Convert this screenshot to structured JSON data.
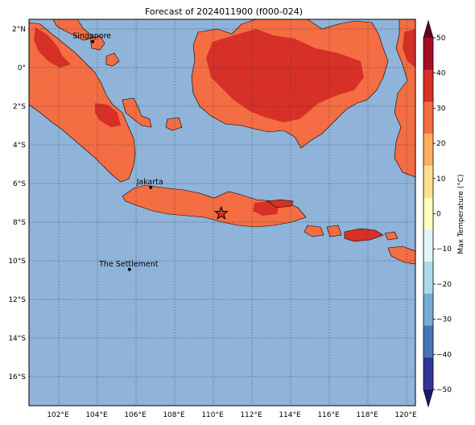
{
  "title": "Forecast of 2024011900 (f000-024)",
  "map": {
    "ocean_color": "#8fb3d9",
    "lon_ticks": [
      "102°E",
      "104°E",
      "106°E",
      "108°E",
      "110°E",
      "112°E",
      "114°E",
      "116°E",
      "118°E",
      "120°E"
    ],
    "lat_ticks": [
      "2°N",
      "0°",
      "2°S",
      "4°S",
      "6°S",
      "8°S",
      "10°S",
      "12°S",
      "14°S",
      "16°S"
    ],
    "cities": [
      {
        "name": "Singapore",
        "lon": 103.8,
        "lat": 1.35
      },
      {
        "name": "Jakarta",
        "lon": 106.8,
        "lat": -6.2
      },
      {
        "name": "The Settlement",
        "lon": 105.7,
        "lat": -10.45
      }
    ],
    "marker": {
      "symbol": "star-icon",
      "lon": 110.45,
      "lat": -7.55
    }
  },
  "colorbar": {
    "label": "Max Temperature (°C)",
    "ticks": [
      "50",
      "40",
      "30",
      "20",
      "10",
      "0",
      "−10",
      "−20",
      "−30",
      "−40",
      "−50"
    ],
    "colors": [
      "#67001f",
      "#a50f26",
      "#d73027",
      "#f46d43",
      "#fdae61",
      "#fee090",
      "#ffffbf",
      "#e0f3f8",
      "#abd9e9",
      "#74add1",
      "#4575b4",
      "#313695",
      "#1a1a6e"
    ]
  },
  "legend_colors": {
    "land_20_30": "#f46d43",
    "land_30_40": "#d73027",
    "coast": "#000000"
  }
}
